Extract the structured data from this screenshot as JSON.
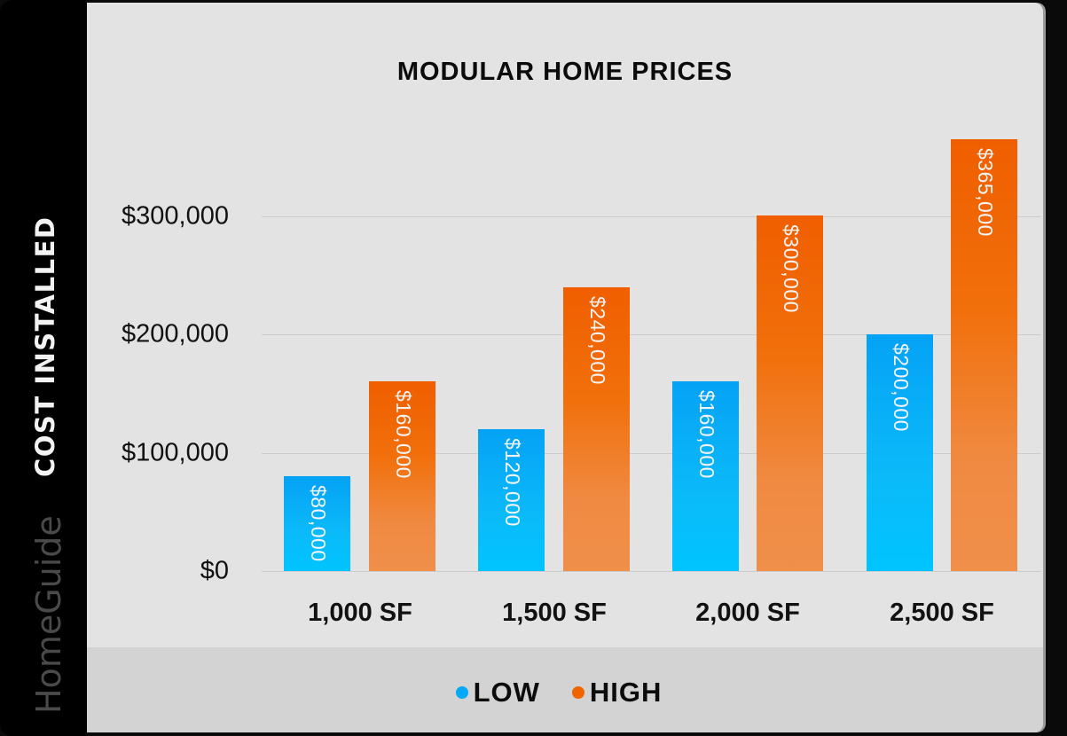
{
  "brand": {
    "name": "HomeGuide"
  },
  "colors": {
    "low": "#05a9f7",
    "high": "#f06400",
    "panel_bg": "#e3e3e3",
    "legend_bg": "#d3d3d3",
    "side_strip": "#000000"
  },
  "chart_data": {
    "type": "bar",
    "title": "MODULAR HOME PRICES",
    "xlabel": "",
    "ylabel": "COST INSTALLED",
    "categories": [
      "1,000 SF",
      "1,500 SF",
      "2,000 SF",
      "2,500 SF"
    ],
    "series": [
      {
        "name": "LOW",
        "color": "#05a9f7",
        "values": [
          80000,
          120000,
          160000,
          200000
        ],
        "labels": [
          "$80,000",
          "$120,000",
          "$160,000",
          "$200,000"
        ]
      },
      {
        "name": "HIGH",
        "color": "#f06400",
        "values": [
          160000,
          240000,
          300000,
          365000
        ],
        "labels": [
          "$160,000",
          "$240,000",
          "$300,000",
          "$365,000"
        ]
      }
    ],
    "yticks": [
      0,
      100000,
      200000,
      300000
    ],
    "ytick_labels": [
      "$0",
      "$100,000",
      "$200,000",
      "$300,000"
    ],
    "ylim": [
      0,
      365000
    ],
    "grid": true,
    "legend_position": "bottom",
    "data_labels": "inside-top, rotated vertical"
  }
}
